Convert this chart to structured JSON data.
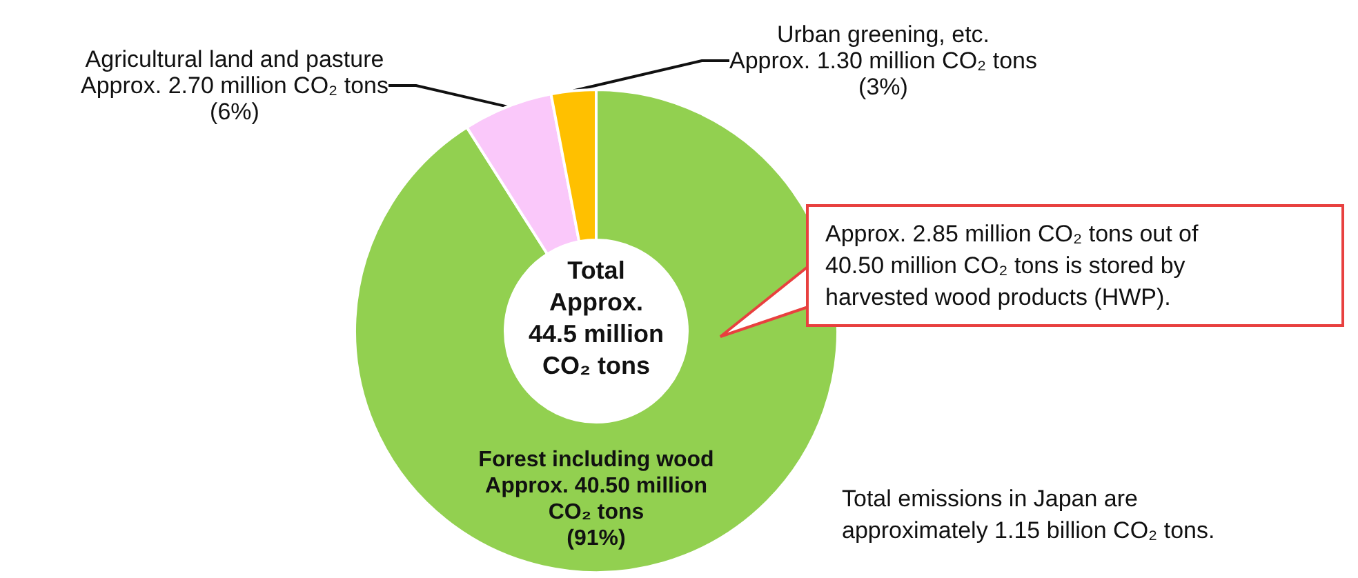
{
  "chart_data": {
    "type": "donut",
    "categories": [
      "Forest including wood",
      "Agricultural land and pasture",
      "Urban greening, etc."
    ],
    "values": [
      91,
      6,
      3
    ],
    "colors": [
      "#92d050",
      "#fac8fa",
      "#ffc000"
    ],
    "value_labels": [
      "Approx. 40.50 million\nCO₂ tons\n(91%)",
      "Approx. 2.70 million CO₂ tons\n(6%)",
      "Approx. 1.30 million CO₂ tons\n(3%)"
    ],
    "annotations": [
      "Total\nApprox.\n44.5 million\nCO₂ tons",
      "Approx. 2.85 million CO₂ tons out of\n40.50 million CO₂ tons is stored by\nharvested wood products (HWP).",
      "Total emissions in Japan are\napproximately 1.15 billion CO₂ tons."
    ],
    "legend": false
  }
}
